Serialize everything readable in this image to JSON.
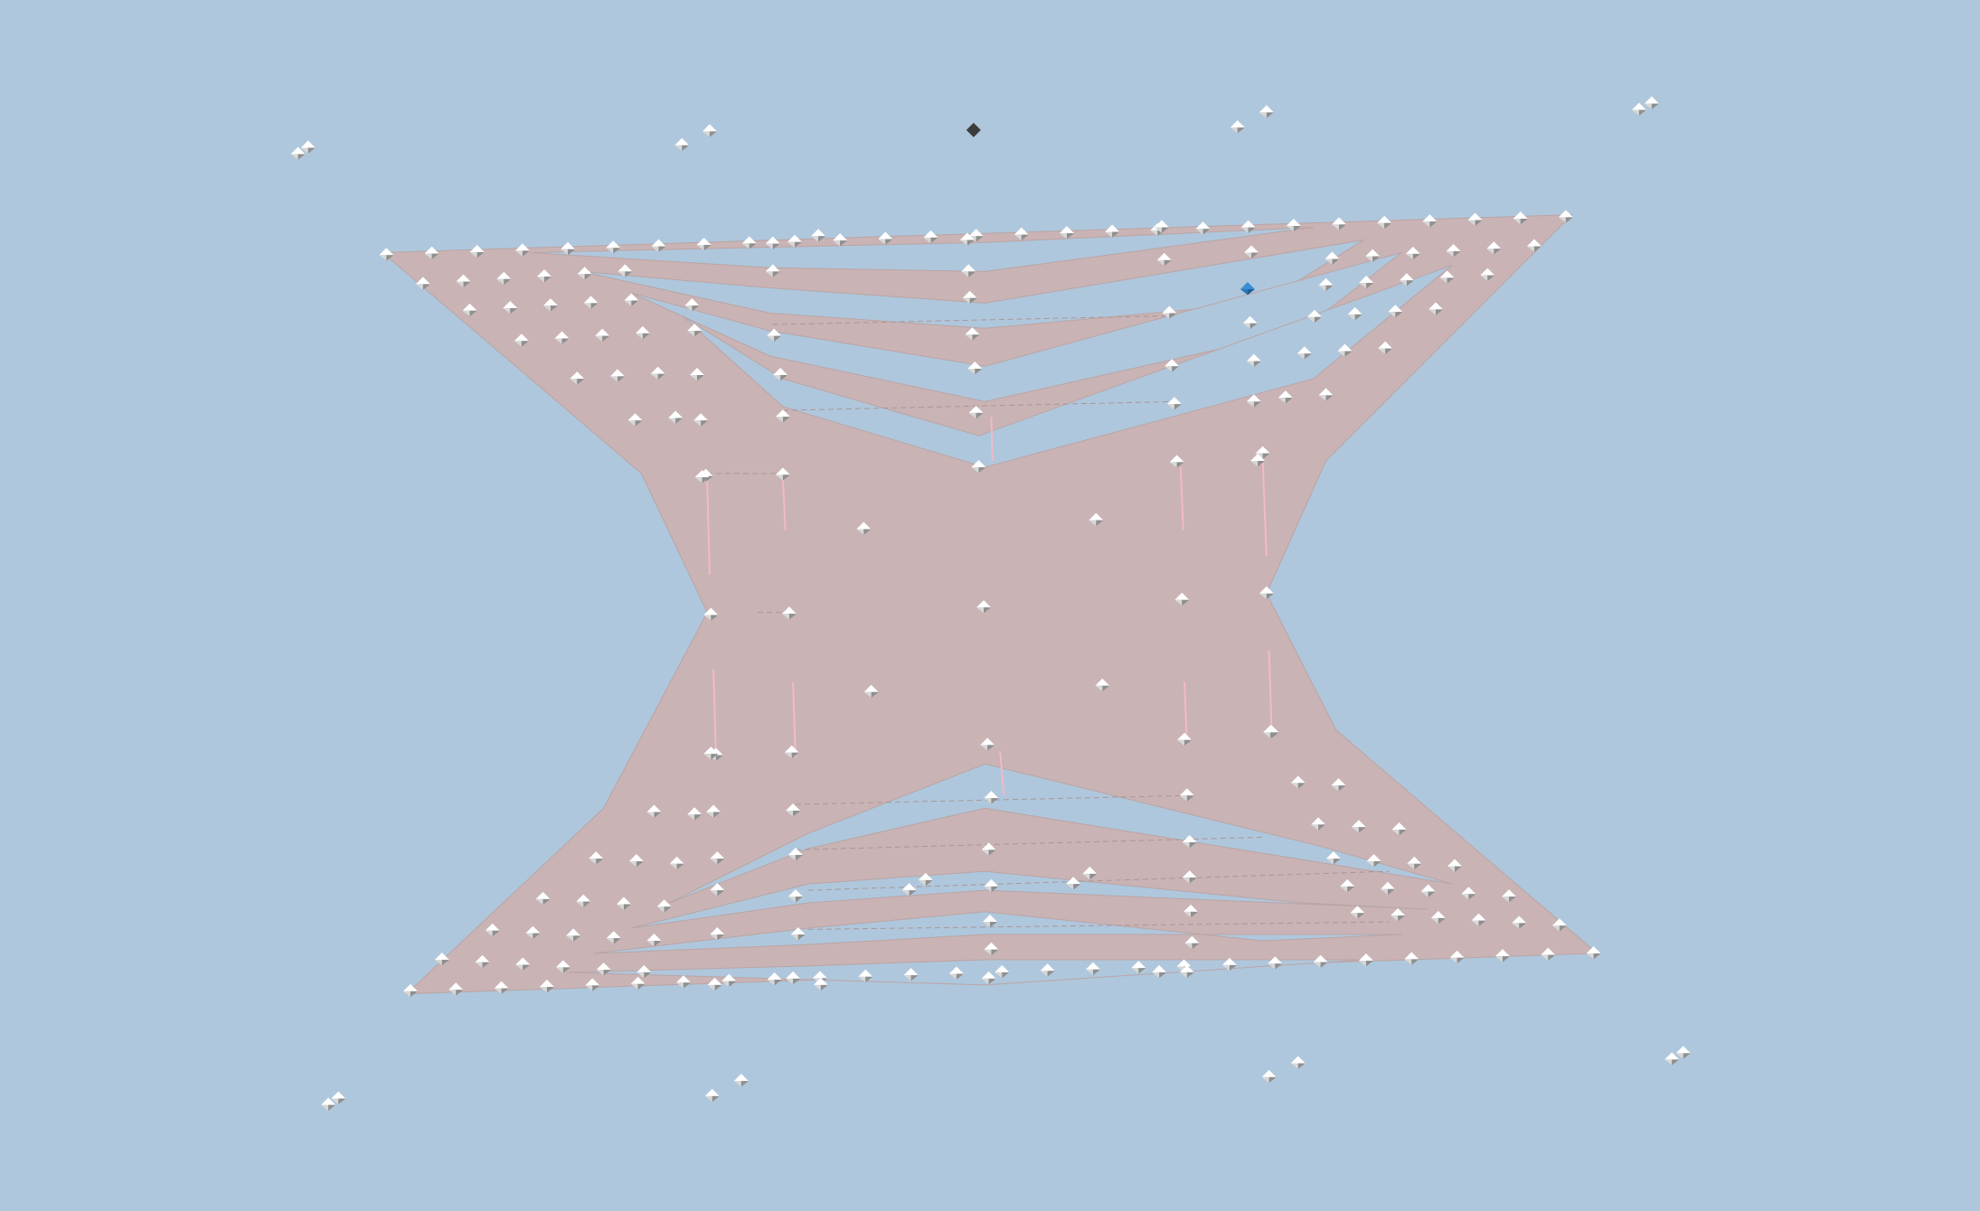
{
  "scene": {
    "background_color": "#afc7dc",
    "surface_color": "#c9b3b4",
    "surface_edge_color": "#b9a5a6",
    "node_top_color": "#ffffff",
    "node_left_color": "#d7d7d7",
    "node_right_color": "#8f8f8f",
    "selected_node_color": "#3a8fd6",
    "anchor_node_color": "#3c3c3c",
    "highlight_line_color": "#f3b9c8",
    "icons": {
      "node": "diamond-node-icon",
      "selected_node": "selected-node-icon",
      "anchor_node": "anchor-node-icon"
    }
  }
}
